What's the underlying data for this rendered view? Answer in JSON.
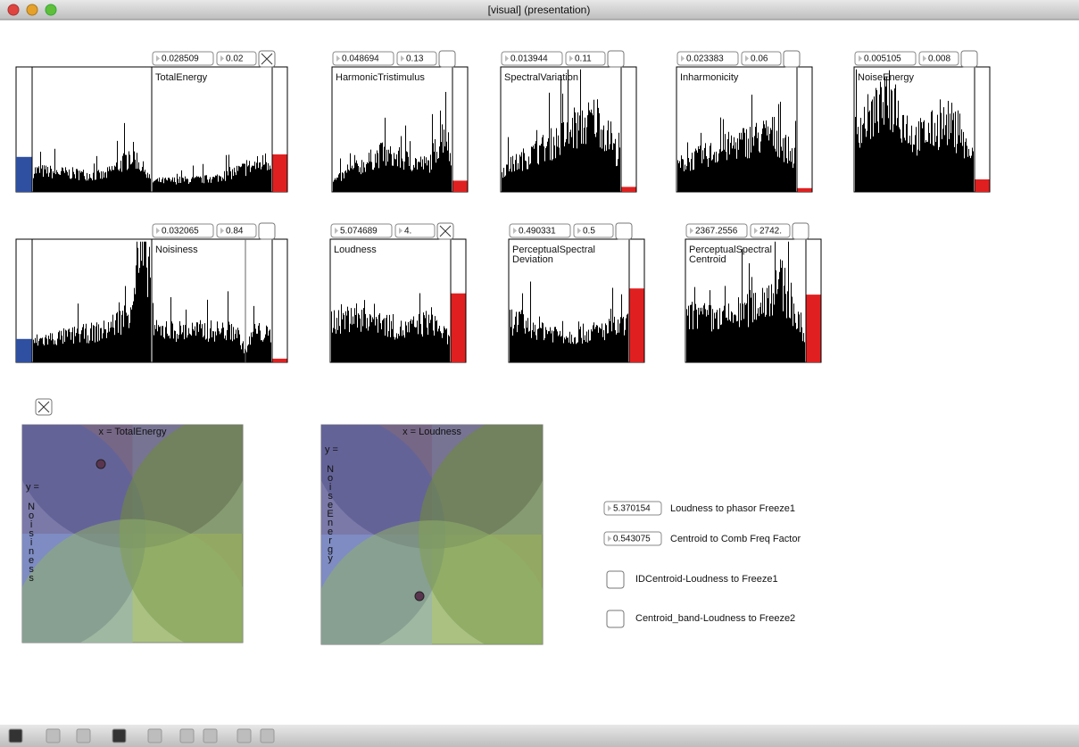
{
  "window": {
    "title": "[visual] (presentation)"
  },
  "panels": [
    {
      "label_lines": [
        "TotalEnergy"
      ],
      "number_boxes": [
        "0.028509",
        "0.02"
      ],
      "toggle_checked": true
    },
    {
      "label_lines": [
        "HarmonicTristimulus"
      ],
      "number_boxes": [
        "0.048694",
        "0.13"
      ],
      "toggle_checked": false
    },
    {
      "label_lines": [
        "SpectralVariation"
      ],
      "number_boxes": [
        "0.013944",
        "0.11"
      ],
      "toggle_checked": false
    },
    {
      "label_lines": [
        "Inharmonicity"
      ],
      "number_boxes": [
        "0.023383",
        "0.06"
      ],
      "toggle_checked": false
    },
    {
      "label_lines": [
        "NoiseEnergy"
      ],
      "number_boxes": [
        "0.005105",
        "0.008"
      ],
      "toggle_checked": false
    },
    {
      "label_lines": [
        "Noisiness"
      ],
      "number_boxes": [
        "0.032065",
        "0.84"
      ],
      "toggle_checked": false
    },
    {
      "label_lines": [
        "Loudness"
      ],
      "number_boxes": [
        "5.074689",
        "4."
      ],
      "toggle_checked": true
    },
    {
      "label_lines": [
        "PerceptualSpectral",
        "Deviation"
      ],
      "number_boxes": [
        "0.490331",
        "0.5"
      ],
      "toggle_checked": false
    },
    {
      "label_lines": [
        "PerceptualSpectral",
        "Centroid"
      ],
      "number_boxes": [
        "2367.2556",
        "2742."
      ],
      "toggle_checked": false
    }
  ],
  "xy_toggle_checked": true,
  "xy_pads": [
    {
      "x_label": "x = TotalEnergy",
      "y_label": "y =",
      "y_name": "Noisiness"
    },
    {
      "x_label": "x = Loudness",
      "y_label": "y =",
      "y_name": "NoiseEnergy"
    }
  ],
  "controls": [
    {
      "kind": "number",
      "value": "5.370154",
      "label": "Loudness to phasor Freeze1"
    },
    {
      "kind": "number",
      "value": "0.543075",
      "label": "Centroid to Comb Freq Factor"
    },
    {
      "kind": "toggle",
      "label": "IDCentroid-Loudness to Freeze1"
    },
    {
      "kind": "toggle",
      "label": "Centroid_band-Loudness to Freeze2"
    }
  ]
}
